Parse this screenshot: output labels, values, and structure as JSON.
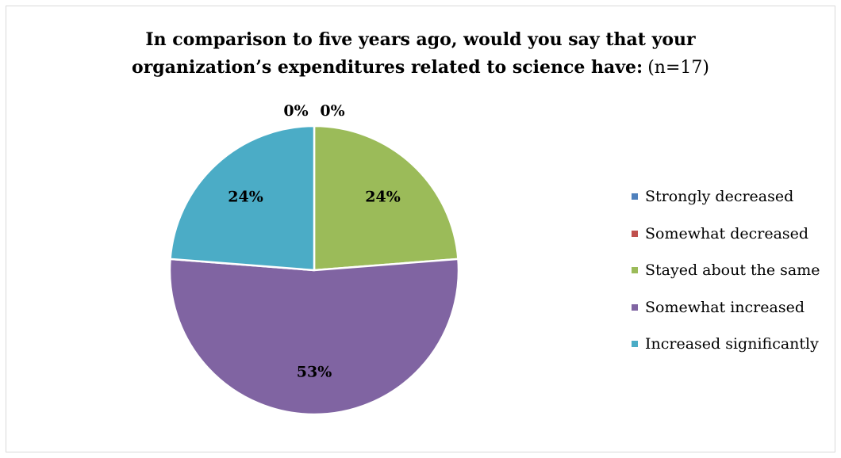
{
  "chart_data": {
    "type": "pie",
    "title_lines": [
      "In comparison to five years ago, would you say that your",
      "organization’s expenditures related to science have:"
    ],
    "title_suffix": "(n=17)",
    "categories": [
      "Strongly decreased",
      "Somewhat decreased",
      "Stayed about the same",
      "Somewhat increased",
      "Increased significantly"
    ],
    "values": [
      0,
      0,
      24,
      53,
      24
    ],
    "data_labels": [
      "0%",
      "0%",
      "24%",
      "53%",
      "24%"
    ],
    "colors": [
      "#4f81bd",
      "#c0504d",
      "#9bbb59",
      "#8064a2",
      "#4bacc6"
    ],
    "legend_position": "right",
    "start_angle": "12 o'clock",
    "direction": "clockwise"
  }
}
